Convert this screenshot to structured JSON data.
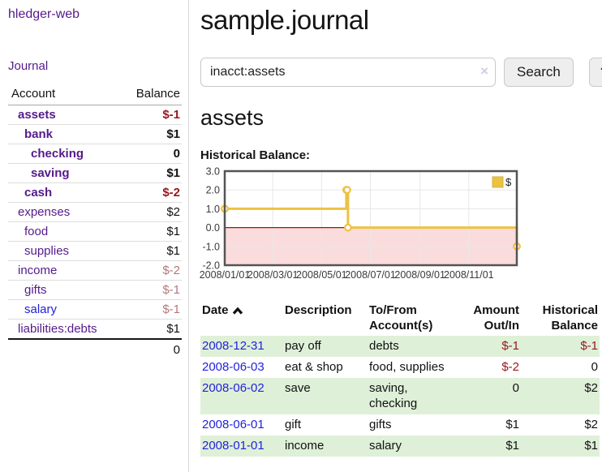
{
  "app": {
    "title": "hledger-web"
  },
  "theme": {
    "link_purple": "#551a8b",
    "link_blue": "#2222dd",
    "negative_strong": "#96181c",
    "negative_soft": "#b5777a",
    "row_stripe_green": "#dff0d8",
    "button_gray": "#eeeeee"
  },
  "sidebar": {
    "journal_label": "Journal",
    "accounts": {
      "account_header": "Account",
      "balance_header": "Balance",
      "rows": [
        {
          "label": "assets",
          "balance": "$-1",
          "level": 1,
          "emphasized": true
        },
        {
          "label": "bank",
          "balance": "$1",
          "level": 2,
          "emphasized": true
        },
        {
          "label": "checking",
          "balance": "0",
          "level": 3,
          "emphasized": true
        },
        {
          "label": "saving",
          "balance": "$1",
          "level": 3,
          "emphasized": true
        },
        {
          "label": "cash",
          "balance": "$-2",
          "level": 2,
          "emphasized": true
        },
        {
          "label": "expenses",
          "balance": "$2",
          "level": 1,
          "emphasized": false
        },
        {
          "label": "food",
          "balance": "$1",
          "level": 2,
          "emphasized": false
        },
        {
          "label": "supplies",
          "balance": "$1",
          "level": 2,
          "emphasized": false
        },
        {
          "label": "income",
          "balance": "$-2",
          "level": 1,
          "emphasized": false
        },
        {
          "label": "gifts",
          "balance": "$-1",
          "level": 2,
          "emphasized": false
        },
        {
          "label": "salary",
          "balance": "$-1",
          "level": 2,
          "emphasized": false
        },
        {
          "label": "liabilities:debts",
          "balance": "$1",
          "level": 1,
          "emphasized": false
        }
      ],
      "total": "0"
    }
  },
  "main": {
    "title": "sample.journal",
    "search": {
      "value": "inacct:assets",
      "clear_icon": "×",
      "button_label": "Search",
      "help_label": "?"
    },
    "account_heading": "assets",
    "chart_label": "Historical Balance:"
  },
  "chart_data": {
    "type": "line",
    "title": "Historical Balance",
    "step": true,
    "legend": "$",
    "legend_position": "top-right",
    "grid": true,
    "points": [
      {
        "date": "2008-01-01",
        "value": 1
      },
      {
        "date": "2008-06-01",
        "value": 2
      },
      {
        "date": "2008-06-02",
        "value": 2
      },
      {
        "date": "2008-06-03",
        "value": 0
      },
      {
        "date": "2008-12-31",
        "value": -1
      }
    ],
    "ylim": [
      -2,
      3
    ],
    "yticks": [
      3,
      2,
      1,
      0,
      -1,
      -2
    ],
    "xrange": [
      "2008-01-01",
      "2008-12-31"
    ],
    "xticks": [
      {
        "date": "2008-01-01",
        "label": "2008/01/01"
      },
      {
        "date": "2008-03-01",
        "label": "2008/03/01"
      },
      {
        "date": "2008-05-01",
        "label": "2008/05/01"
      },
      {
        "date": "2008-07-01",
        "label": "2008/07/01"
      },
      {
        "date": "2008-09-01",
        "label": "2008/09/01"
      },
      {
        "date": "2008-11-01",
        "label": "2008/11/01"
      }
    ],
    "colors": {
      "series": "#edc240",
      "negative_region": "#fbdcdc",
      "zero_line": "#a80f0f",
      "gridline": "#e7e7e7",
      "border": "#545454"
    }
  },
  "register": {
    "headers": {
      "date": "Date",
      "sort": "ascending",
      "description": "Description",
      "accounts": "To/From Account(s)",
      "amount": "Amount Out/In",
      "balance": "Historical Balance"
    },
    "rows": [
      {
        "date": "2008-12-31",
        "description": "pay off",
        "accounts": "debts",
        "amount": "$-1",
        "balance": "$-1"
      },
      {
        "date": "2008-06-03",
        "description": "eat & shop",
        "accounts": "food, supplies",
        "amount": "$-2",
        "balance": "0"
      },
      {
        "date": "2008-06-02",
        "description": "save",
        "accounts": "saving, checking",
        "amount": "0",
        "balance": "$2"
      },
      {
        "date": "2008-06-01",
        "description": "gift",
        "accounts": "gifts",
        "amount": "$1",
        "balance": "$2"
      },
      {
        "date": "2008-01-01",
        "description": "income",
        "accounts": "salary",
        "amount": "$1",
        "balance": "$1"
      }
    ]
  }
}
